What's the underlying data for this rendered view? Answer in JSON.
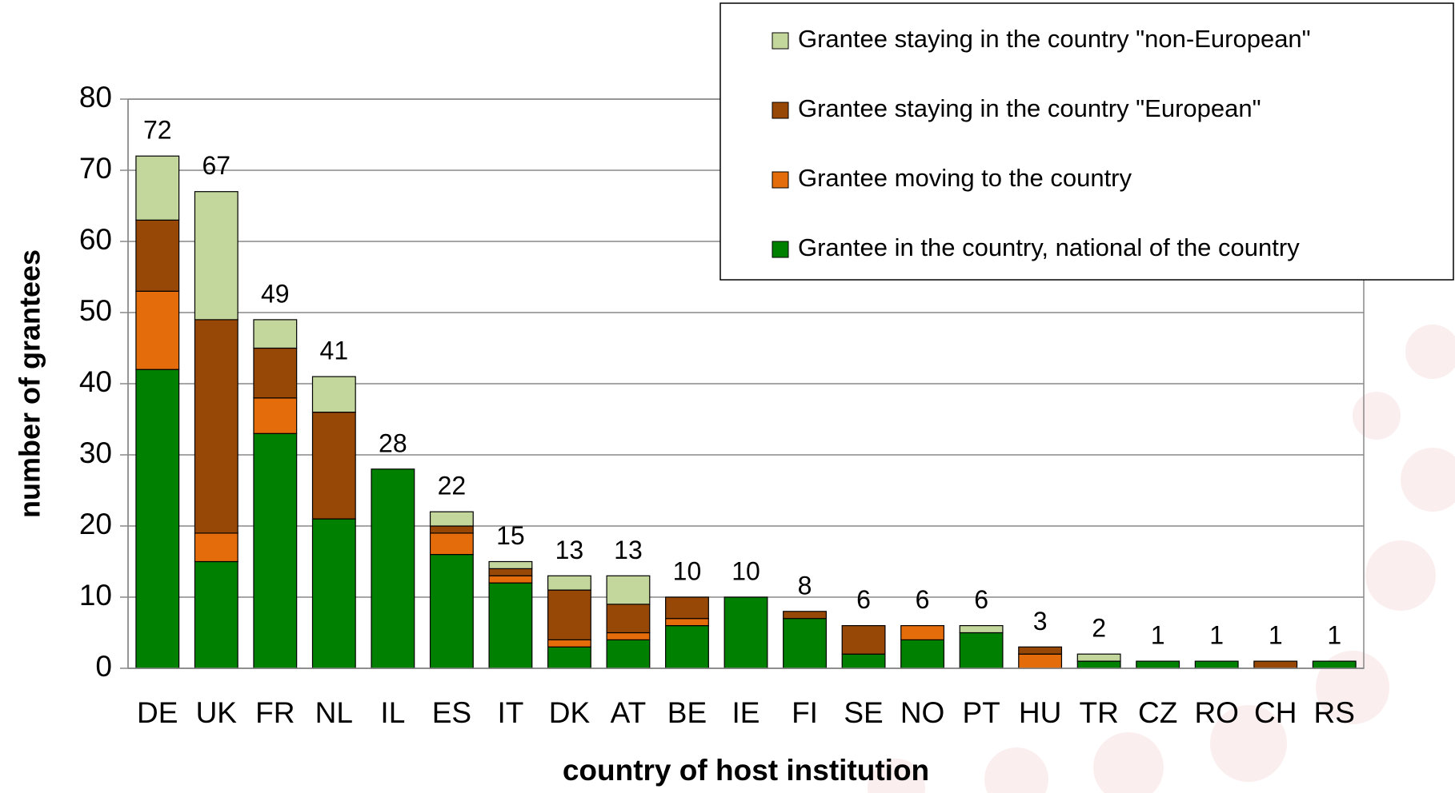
{
  "chart_data": {
    "type": "stacked_bar",
    "y_label": "number of grantees",
    "x_label": "country of host institution",
    "categories": [
      "DE",
      "UK",
      "FR",
      "NL",
      "IL",
      "ES",
      "IT",
      "DK",
      "AT",
      "BE",
      "IE",
      "FI",
      "SE",
      "NO",
      "PT",
      "HU",
      "TR",
      "CZ",
      "RO",
      "CH",
      "RS"
    ],
    "series": [
      {
        "name": "Grantee in the country, national of the country",
        "color": "#008000",
        "values": [
          42,
          15,
          33,
          21,
          28,
          16,
          12,
          3,
          4,
          6,
          10,
          7,
          2,
          4,
          5,
          0,
          1,
          1,
          1,
          0,
          1
        ]
      },
      {
        "name": "Grantee moving to the country",
        "color": "#e46c0a",
        "values": [
          11,
          4,
          5,
          0,
          0,
          3,
          1,
          1,
          1,
          1,
          0,
          0,
          0,
          2,
          0,
          2,
          0,
          0,
          0,
          0,
          0
        ]
      },
      {
        "name": "Grantee staying in the country \"European\"",
        "color": "#974806",
        "values": [
          10,
          30,
          7,
          15,
          0,
          1,
          1,
          7,
          4,
          3,
          0,
          1,
          4,
          0,
          0,
          1,
          0,
          0,
          0,
          1,
          0
        ]
      },
      {
        "name": "Grantee staying in the country \"non-European\"",
        "color": "#c3d69b",
        "values": [
          9,
          18,
          4,
          5,
          0,
          2,
          1,
          2,
          4,
          0,
          0,
          0,
          0,
          0,
          1,
          0,
          1,
          0,
          0,
          0,
          0
        ]
      }
    ],
    "totals": [
      72,
      67,
      49,
      41,
      28,
      22,
      15,
      13,
      13,
      10,
      10,
      8,
      6,
      6,
      6,
      3,
      2,
      1,
      1,
      1,
      1
    ],
    "ylim": [
      0,
      80
    ],
    "yticks": [
      0,
      10,
      20,
      30,
      40,
      50,
      60,
      70,
      80
    ],
    "grid": true,
    "legend": "top-right"
  }
}
